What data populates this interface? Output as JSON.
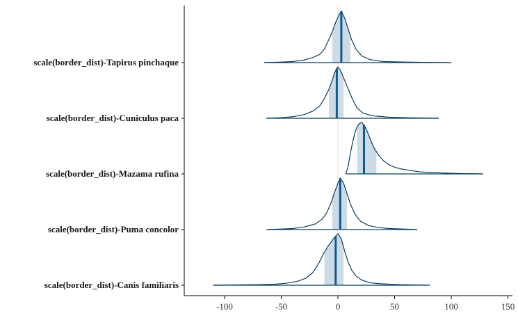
{
  "chart_data": {
    "type": "area",
    "title": "",
    "xlabel": "",
    "ylabel": "",
    "xlim": [
      -135,
      150
    ],
    "xticks": [
      -100,
      -50,
      0,
      50,
      100,
      150
    ],
    "x_tick_labels": [
      "-100",
      "-50",
      "0",
      "50",
      "100",
      "150"
    ],
    "reference_line_x": 0,
    "grid": false,
    "legend": "none",
    "colors": {
      "line": "#0b3c5d",
      "median": "#0a5a93",
      "interval": "#cddbe6",
      "ref": "#e2e2e2",
      "axis": "#000000"
    },
    "categories": [
      {
        "label": "scale(border_dist)-Tapirus pinchaque",
        "median": 3,
        "interval": [
          -5,
          11
        ],
        "range": [
          -65,
          100
        ],
        "density": [
          [
            -65,
            0
          ],
          [
            -50,
            0.01
          ],
          [
            -40,
            0.02
          ],
          [
            -30,
            0.05
          ],
          [
            -22,
            0.1
          ],
          [
            -16,
            0.16
          ],
          [
            -12,
            0.26
          ],
          [
            -8,
            0.45
          ],
          [
            -5,
            0.6
          ],
          [
            -2,
            0.78
          ],
          [
            1,
            0.93
          ],
          [
            3,
            1.0
          ],
          [
            6,
            0.86
          ],
          [
            9,
            0.66
          ],
          [
            12,
            0.45
          ],
          [
            16,
            0.26
          ],
          [
            21,
            0.13
          ],
          [
            28,
            0.06
          ],
          [
            40,
            0.02
          ],
          [
            60,
            0.01
          ],
          [
            80,
            0.003
          ],
          [
            100,
            0
          ]
        ]
      },
      {
        "label": "scale(border_dist)-Cuniculus paca",
        "median": -1,
        "interval": [
          -8,
          5
        ],
        "range": [
          -63,
          89
        ],
        "density": [
          [
            -63,
            0
          ],
          [
            -50,
            0.01
          ],
          [
            -40,
            0.03
          ],
          [
            -30,
            0.07
          ],
          [
            -22,
            0.14
          ],
          [
            -16,
            0.24
          ],
          [
            -12,
            0.38
          ],
          [
            -8,
            0.56
          ],
          [
            -5,
            0.74
          ],
          [
            -3,
            0.88
          ],
          [
            -1,
            0.97
          ],
          [
            0,
            1.0
          ],
          [
            2,
            0.94
          ],
          [
            4,
            0.84
          ],
          [
            7,
            0.68
          ],
          [
            10,
            0.52
          ],
          [
            13,
            0.36
          ],
          [
            17,
            0.2
          ],
          [
            22,
            0.1
          ],
          [
            30,
            0.05
          ],
          [
            45,
            0.02
          ],
          [
            60,
            0.01
          ],
          [
            75,
            0.005
          ],
          [
            89,
            0
          ]
        ]
      },
      {
        "label": "scale(border_dist)-Mazama rufina",
        "median": 23,
        "interval": [
          17,
          34
        ],
        "range": [
          7,
          128
        ],
        "density": [
          [
            7,
            0
          ],
          [
            9,
            0.15
          ],
          [
            11,
            0.4
          ],
          [
            13,
            0.62
          ],
          [
            15,
            0.8
          ],
          [
            17,
            0.92
          ],
          [
            19,
            0.98
          ],
          [
            21,
            1.0
          ],
          [
            23,
            0.95
          ],
          [
            26,
            0.82
          ],
          [
            29,
            0.65
          ],
          [
            32,
            0.5
          ],
          [
            36,
            0.36
          ],
          [
            40,
            0.26
          ],
          [
            45,
            0.18
          ],
          [
            50,
            0.13
          ],
          [
            55,
            0.1
          ],
          [
            60,
            0.08
          ],
          [
            66,
            0.06
          ],
          [
            72,
            0.04
          ],
          [
            80,
            0.03
          ],
          [
            90,
            0.02
          ],
          [
            100,
            0.012
          ],
          [
            110,
            0.006
          ],
          [
            120,
            0.003
          ],
          [
            128,
            0
          ]
        ]
      },
      {
        "label": "scale(border_dist)-Puma concolor",
        "median": 2,
        "interval": [
          -5,
          8
        ],
        "range": [
          -63,
          70
        ],
        "density": [
          [
            -63,
            0
          ],
          [
            -50,
            0.01
          ],
          [
            -40,
            0.02
          ],
          [
            -30,
            0.05
          ],
          [
            -20,
            0.11
          ],
          [
            -14,
            0.2
          ],
          [
            -10,
            0.32
          ],
          [
            -6,
            0.52
          ],
          [
            -3,
            0.72
          ],
          [
            0,
            0.9
          ],
          [
            2,
            1.0
          ],
          [
            5,
            0.9
          ],
          [
            8,
            0.7
          ],
          [
            11,
            0.5
          ],
          [
            15,
            0.3
          ],
          [
            20,
            0.16
          ],
          [
            27,
            0.08
          ],
          [
            35,
            0.04
          ],
          [
            45,
            0.02
          ],
          [
            58,
            0.01
          ],
          [
            70,
            0
          ]
        ]
      },
      {
        "label": "scale(border_dist)-Canis familiaris",
        "median": -2,
        "interval": [
          -12,
          5
        ],
        "range": [
          -110,
          81
        ],
        "density": [
          [
            -110,
            0
          ],
          [
            -90,
            0.005
          ],
          [
            -70,
            0.01
          ],
          [
            -55,
            0.02
          ],
          [
            -45,
            0.04
          ],
          [
            -35,
            0.08
          ],
          [
            -28,
            0.14
          ],
          [
            -22,
            0.25
          ],
          [
            -17,
            0.42
          ],
          [
            -13,
            0.6
          ],
          [
            -9,
            0.75
          ],
          [
            -6,
            0.84
          ],
          [
            -3,
            0.93
          ],
          [
            0,
            1.0
          ],
          [
            3,
            0.9
          ],
          [
            6,
            0.66
          ],
          [
            9,
            0.45
          ],
          [
            12,
            0.3
          ],
          [
            16,
            0.18
          ],
          [
            21,
            0.1
          ],
          [
            28,
            0.05
          ],
          [
            36,
            0.03
          ],
          [
            45,
            0.02
          ],
          [
            55,
            0.01
          ],
          [
            68,
            0.005
          ],
          [
            81,
            0
          ]
        ]
      }
    ]
  }
}
